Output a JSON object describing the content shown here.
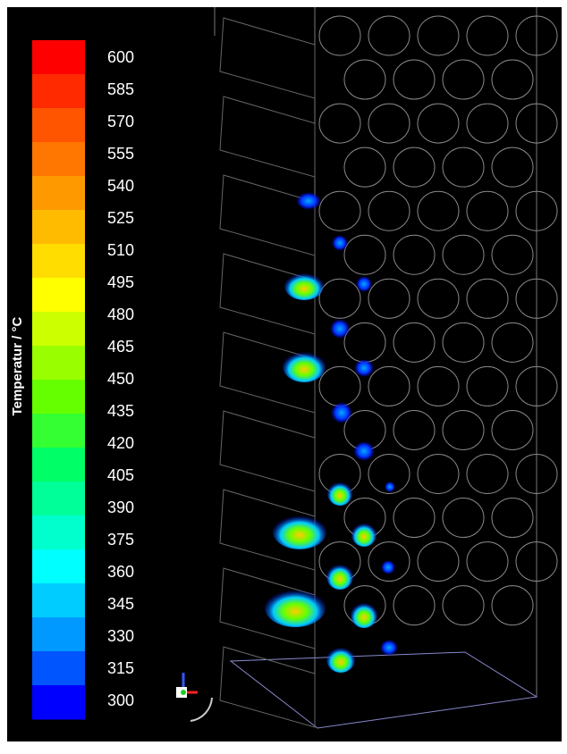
{
  "colorbar": {
    "label": "Temperatur / °C",
    "range": [
      300,
      600
    ],
    "ticks": [
      600,
      585,
      570,
      555,
      540,
      525,
      510,
      495,
      480,
      465,
      450,
      435,
      420,
      405,
      390,
      375,
      360,
      345,
      330,
      315,
      300
    ],
    "colors": [
      "#ff0000",
      "#ff2a00",
      "#ff5500",
      "#ff7700",
      "#ff9900",
      "#ffbb00",
      "#ffdd00",
      "#ffff00",
      "#ccff00",
      "#99ff00",
      "#66ff00",
      "#33ff33",
      "#00ff66",
      "#00ff99",
      "#00ffcc",
      "#00ffff",
      "#00ccff",
      "#0099ff",
      "#0055ff",
      "#0000ff"
    ]
  }
}
